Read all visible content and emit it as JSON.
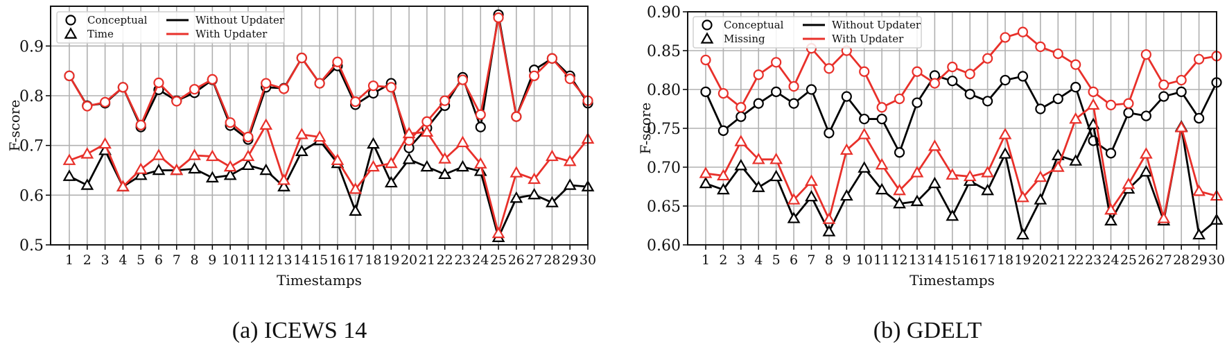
{
  "colors": {
    "without": "#000000",
    "with": "#e8302a",
    "grid": "#b0b0b0"
  },
  "captions": [
    "(a)  ICEWS 14",
    "(b)  GDELT"
  ],
  "chart_data": [
    {
      "type": "line",
      "title": "",
      "xlabel": "Timestamps",
      "ylabel": "F-score",
      "x": [
        1,
        2,
        3,
        4,
        5,
        6,
        7,
        8,
        9,
        10,
        11,
        12,
        13,
        14,
        15,
        16,
        17,
        18,
        19,
        20,
        21,
        22,
        23,
        24,
        25,
        26,
        27,
        28,
        29,
        30
      ],
      "ylim": [
        0.5,
        0.98
      ],
      "yticks": [
        "0.5",
        "0.6",
        "0.7",
        "0.8",
        "0.9"
      ],
      "grid": true,
      "legend_placement": "top-left",
      "legend": {
        "markers": [
          "Conceptual",
          "Time"
        ],
        "lines": [
          "Without Updater",
          "With Updater"
        ]
      },
      "series": [
        {
          "name": "Conceptual / Without Updater",
          "marker": "circle",
          "color": "without",
          "values": [
            0.84,
            0.78,
            0.785,
            0.817,
            0.737,
            0.812,
            0.79,
            0.806,
            0.832,
            0.74,
            0.712,
            0.817,
            0.815,
            0.876,
            0.825,
            0.86,
            0.782,
            0.805,
            0.825,
            0.695,
            0.735,
            0.78,
            0.837,
            0.737,
            0.963,
            0.758,
            0.852,
            0.875,
            0.84,
            0.785
          ]
        },
        {
          "name": "Conceptual / With Updater",
          "marker": "circle",
          "color": "with",
          "values": [
            0.84,
            0.779,
            0.787,
            0.817,
            0.741,
            0.826,
            0.789,
            0.813,
            0.833,
            0.746,
            0.717,
            0.825,
            0.814,
            0.876,
            0.825,
            0.868,
            0.788,
            0.82,
            0.817,
            0.71,
            0.748,
            0.79,
            0.832,
            0.762,
            0.957,
            0.758,
            0.84,
            0.875,
            0.834,
            0.79
          ]
        },
        {
          "name": "Time / Without Updater",
          "marker": "triangle",
          "color": "without",
          "values": [
            0.638,
            0.62,
            0.69,
            0.617,
            0.64,
            0.65,
            0.65,
            0.653,
            0.635,
            0.64,
            0.66,
            0.65,
            0.617,
            0.688,
            0.71,
            0.664,
            0.568,
            0.703,
            0.625,
            0.672,
            0.657,
            0.642,
            0.657,
            0.648,
            0.515,
            0.594,
            0.601,
            0.585,
            0.62,
            0.617
          ]
        },
        {
          "name": "Time / With Updater",
          "marker": "triangle",
          "color": "with",
          "values": [
            0.67,
            0.683,
            0.703,
            0.617,
            0.652,
            0.68,
            0.65,
            0.68,
            0.678,
            0.657,
            0.678,
            0.741,
            0.63,
            0.722,
            0.717,
            0.67,
            0.612,
            0.657,
            0.664,
            0.724,
            0.727,
            0.673,
            0.706,
            0.663,
            0.523,
            0.645,
            0.632,
            0.678,
            0.668,
            0.713
          ]
        }
      ]
    },
    {
      "type": "line",
      "title": "",
      "xlabel": "Timestamps",
      "ylabel": "F-score",
      "x": [
        1,
        2,
        3,
        4,
        5,
        6,
        7,
        8,
        9,
        10,
        11,
        12,
        13,
        14,
        15,
        16,
        17,
        18,
        19,
        20,
        21,
        22,
        23,
        24,
        25,
        26,
        27,
        28,
        29,
        30
      ],
      "ylim": [
        0.6,
        0.9
      ],
      "yticks": [
        "0.60",
        "0.65",
        "0.70",
        "0.75",
        "0.80",
        "0.85",
        "0.90"
      ],
      "grid": true,
      "legend_placement": "top-left",
      "legend": {
        "markers": [
          "Conceptual",
          "Missing"
        ],
        "lines": [
          "Without Updater",
          "With Updater"
        ]
      },
      "series": [
        {
          "name": "Conceptual / Without Updater",
          "marker": "circle",
          "color": "without",
          "values": [
            0.797,
            0.747,
            0.765,
            0.782,
            0.797,
            0.782,
            0.8,
            0.744,
            0.791,
            0.762,
            0.762,
            0.719,
            0.783,
            0.818,
            0.811,
            0.794,
            0.785,
            0.812,
            0.817,
            0.775,
            0.788,
            0.803,
            0.734,
            0.718,
            0.77,
            0.766,
            0.791,
            0.797,
            0.763,
            0.809
          ]
        },
        {
          "name": "Conceptual / With Updater",
          "marker": "circle",
          "color": "with",
          "values": [
            0.838,
            0.795,
            0.777,
            0.819,
            0.835,
            0.804,
            0.853,
            0.827,
            0.85,
            0.823,
            0.777,
            0.788,
            0.823,
            0.808,
            0.829,
            0.82,
            0.84,
            0.867,
            0.874,
            0.855,
            0.846,
            0.832,
            0.797,
            0.78,
            0.782,
            0.845,
            0.806,
            0.812,
            0.839,
            0.843
          ]
        },
        {
          "name": "Missing / Without Updater",
          "marker": "triangle",
          "color": "without",
          "values": [
            0.679,
            0.671,
            0.702,
            0.674,
            0.688,
            0.634,
            0.662,
            0.617,
            0.663,
            0.699,
            0.671,
            0.653,
            0.656,
            0.679,
            0.637,
            0.682,
            0.67,
            0.717,
            0.613,
            0.658,
            0.715,
            0.708,
            0.755,
            0.631,
            0.672,
            0.694,
            0.631,
            0.752,
            0.613,
            0.632
          ]
        },
        {
          "name": "Missing / With Updater",
          "marker": "triangle",
          "color": "with",
          "values": [
            0.692,
            0.689,
            0.733,
            0.71,
            0.71,
            0.658,
            0.682,
            0.633,
            0.722,
            0.742,
            0.703,
            0.67,
            0.693,
            0.727,
            0.69,
            0.688,
            0.693,
            0.742,
            0.661,
            0.687,
            0.7,
            0.762,
            0.78,
            0.645,
            0.678,
            0.717,
            0.634,
            0.751,
            0.669,
            0.663
          ]
        }
      ]
    }
  ]
}
